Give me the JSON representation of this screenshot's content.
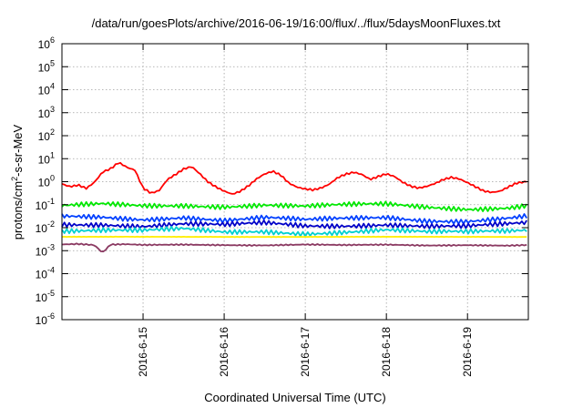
{
  "chart_data": {
    "type": "line",
    "title": "/data/run/goesPlots/archive/2016-06-19/16:00/flux/../flux/5daysMoonFluxes.txt",
    "xlabel": "Coordinated Universal Time (UTC)",
    "ylabel_parts": [
      "protons/cm",
      "2",
      "-s-sr-MeV"
    ],
    "yscale": "log",
    "ylim": [
      1e-06,
      1000000.0
    ],
    "xlim": [
      0,
      5.75
    ],
    "grid": true,
    "legend": "none",
    "y_ticks": [
      {
        "value": 1e-06,
        "base": "10",
        "exp": "-6"
      },
      {
        "value": 1e-05,
        "base": "10",
        "exp": "-5"
      },
      {
        "value": 0.0001,
        "base": "10",
        "exp": "-4"
      },
      {
        "value": 0.001,
        "base": "10",
        "exp": "-3"
      },
      {
        "value": 0.01,
        "base": "10",
        "exp": "-2"
      },
      {
        "value": 0.1,
        "base": "10",
        "exp": "-1"
      },
      {
        "value": 1,
        "base": "10",
        "exp": "0"
      },
      {
        "value": 10.0,
        "base": "10",
        "exp": "1"
      },
      {
        "value": 100.0,
        "base": "10",
        "exp": "2"
      },
      {
        "value": 1000.0,
        "base": "10",
        "exp": "3"
      },
      {
        "value": 10000.0,
        "base": "10",
        "exp": "4"
      },
      {
        "value": 100000.0,
        "base": "10",
        "exp": "5"
      },
      {
        "value": 1000000.0,
        "base": "10",
        "exp": "6"
      }
    ],
    "x_ticks": [
      {
        "value": 1,
        "label": "2016-6-15"
      },
      {
        "value": 2,
        "label": "2016-6-16"
      },
      {
        "value": 3,
        "label": "2016-6-17"
      },
      {
        "value": 4,
        "label": "2016-6-18"
      },
      {
        "value": 5,
        "label": "2016-6-19"
      }
    ],
    "series": [
      {
        "color": "#ff0000",
        "x": [
          0,
          0.1,
          0.2,
          0.3,
          0.4,
          0.5,
          0.6,
          0.7,
          0.8,
          0.9,
          1.0,
          1.1,
          1.2,
          1.3,
          1.4,
          1.5,
          1.6,
          1.7,
          1.8,
          1.9,
          2.0,
          2.1,
          2.2,
          2.3,
          2.4,
          2.5,
          2.6,
          2.7,
          2.8,
          2.9,
          3.0,
          3.1,
          3.2,
          3.3,
          3.4,
          3.5,
          3.6,
          3.7,
          3.8,
          3.9,
          4.0,
          4.1,
          4.2,
          4.3,
          4.4,
          4.5,
          4.6,
          4.7,
          4.8,
          4.9,
          5.0,
          5.1,
          5.2,
          5.3,
          5.4,
          5.5,
          5.6,
          5.75
        ],
        "values": [
          0.8,
          0.6,
          0.7,
          0.5,
          0.9,
          2.5,
          3.5,
          6.5,
          4.0,
          3.0,
          0.5,
          0.3,
          0.4,
          1.2,
          2.0,
          3.5,
          4.5,
          2.2,
          1.0,
          0.6,
          0.4,
          0.3,
          0.4,
          0.7,
          1.4,
          2.3,
          3.0,
          2.0,
          0.9,
          0.6,
          0.5,
          0.45,
          0.55,
          0.8,
          1.5,
          2.1,
          2.5,
          2.0,
          1.2,
          1.6,
          2.1,
          1.6,
          0.9,
          0.6,
          0.5,
          0.6,
          0.8,
          1.2,
          1.5,
          1.3,
          0.9,
          0.6,
          0.4,
          0.35,
          0.4,
          0.6,
          0.9,
          1.1
        ]
      },
      {
        "color": "#00e800",
        "x": [
          0,
          0.5,
          1.0,
          1.5,
          2.0,
          2.5,
          3.0,
          3.5,
          4.0,
          4.5,
          5.0,
          5.5,
          5.75
        ],
        "values": [
          0.08,
          0.1,
          0.09,
          0.1,
          0.09,
          0.1,
          0.08,
          0.09,
          0.1,
          0.08,
          0.07,
          0.08,
          0.1
        ]
      },
      {
        "color": "#0040ff",
        "x": [
          0,
          0.5,
          1.0,
          1.5,
          2.0,
          2.5,
          3.0,
          3.5,
          4.0,
          4.5,
          5.0,
          5.5,
          5.75
        ],
        "values": [
          0.03,
          0.03,
          0.025,
          0.03,
          0.02,
          0.025,
          0.02,
          0.025,
          0.03,
          0.022,
          0.02,
          0.025,
          0.03
        ]
      },
      {
        "color": "#0000c8",
        "x": [
          0,
          0.5,
          1.0,
          1.5,
          2.0,
          2.5,
          3.0,
          3.5,
          4.0,
          4.5,
          5.0,
          5.5,
          5.75
        ],
        "values": [
          0.015,
          0.015,
          0.012,
          0.014,
          0.012,
          0.015,
          0.012,
          0.013,
          0.015,
          0.012,
          0.011,
          0.013,
          0.015
        ]
      },
      {
        "color": "#00d0d0",
        "x": [
          0,
          0.5,
          1.0,
          1.5,
          2.0,
          2.5,
          3.0,
          3.5,
          4.0,
          4.5,
          5.0,
          5.5,
          5.75
        ],
        "values": [
          0.008,
          0.008,
          0.007,
          0.008,
          0.006,
          0.007,
          0.006,
          0.007,
          0.008,
          0.006,
          0.006,
          0.007,
          0.008
        ]
      },
      {
        "color": "#ffee00",
        "x": [
          0,
          5.75
        ],
        "values": [
          0.004,
          0.004
        ]
      },
      {
        "color": "#8b3a62",
        "x": [
          0,
          0.2,
          0.4,
          0.5,
          0.6,
          0.8,
          1.0,
          1.5,
          2.0,
          2.5,
          3.0,
          3.5,
          4.0,
          4.5,
          5.0,
          5.5,
          5.75
        ],
        "values": [
          0.0018,
          0.0019,
          0.0017,
          0.0008,
          0.0018,
          0.0019,
          0.0018,
          0.0019,
          0.0018,
          0.0017,
          0.0018,
          0.0017,
          0.0018,
          0.0017,
          0.0018,
          0.0017,
          0.0018
        ]
      }
    ]
  }
}
